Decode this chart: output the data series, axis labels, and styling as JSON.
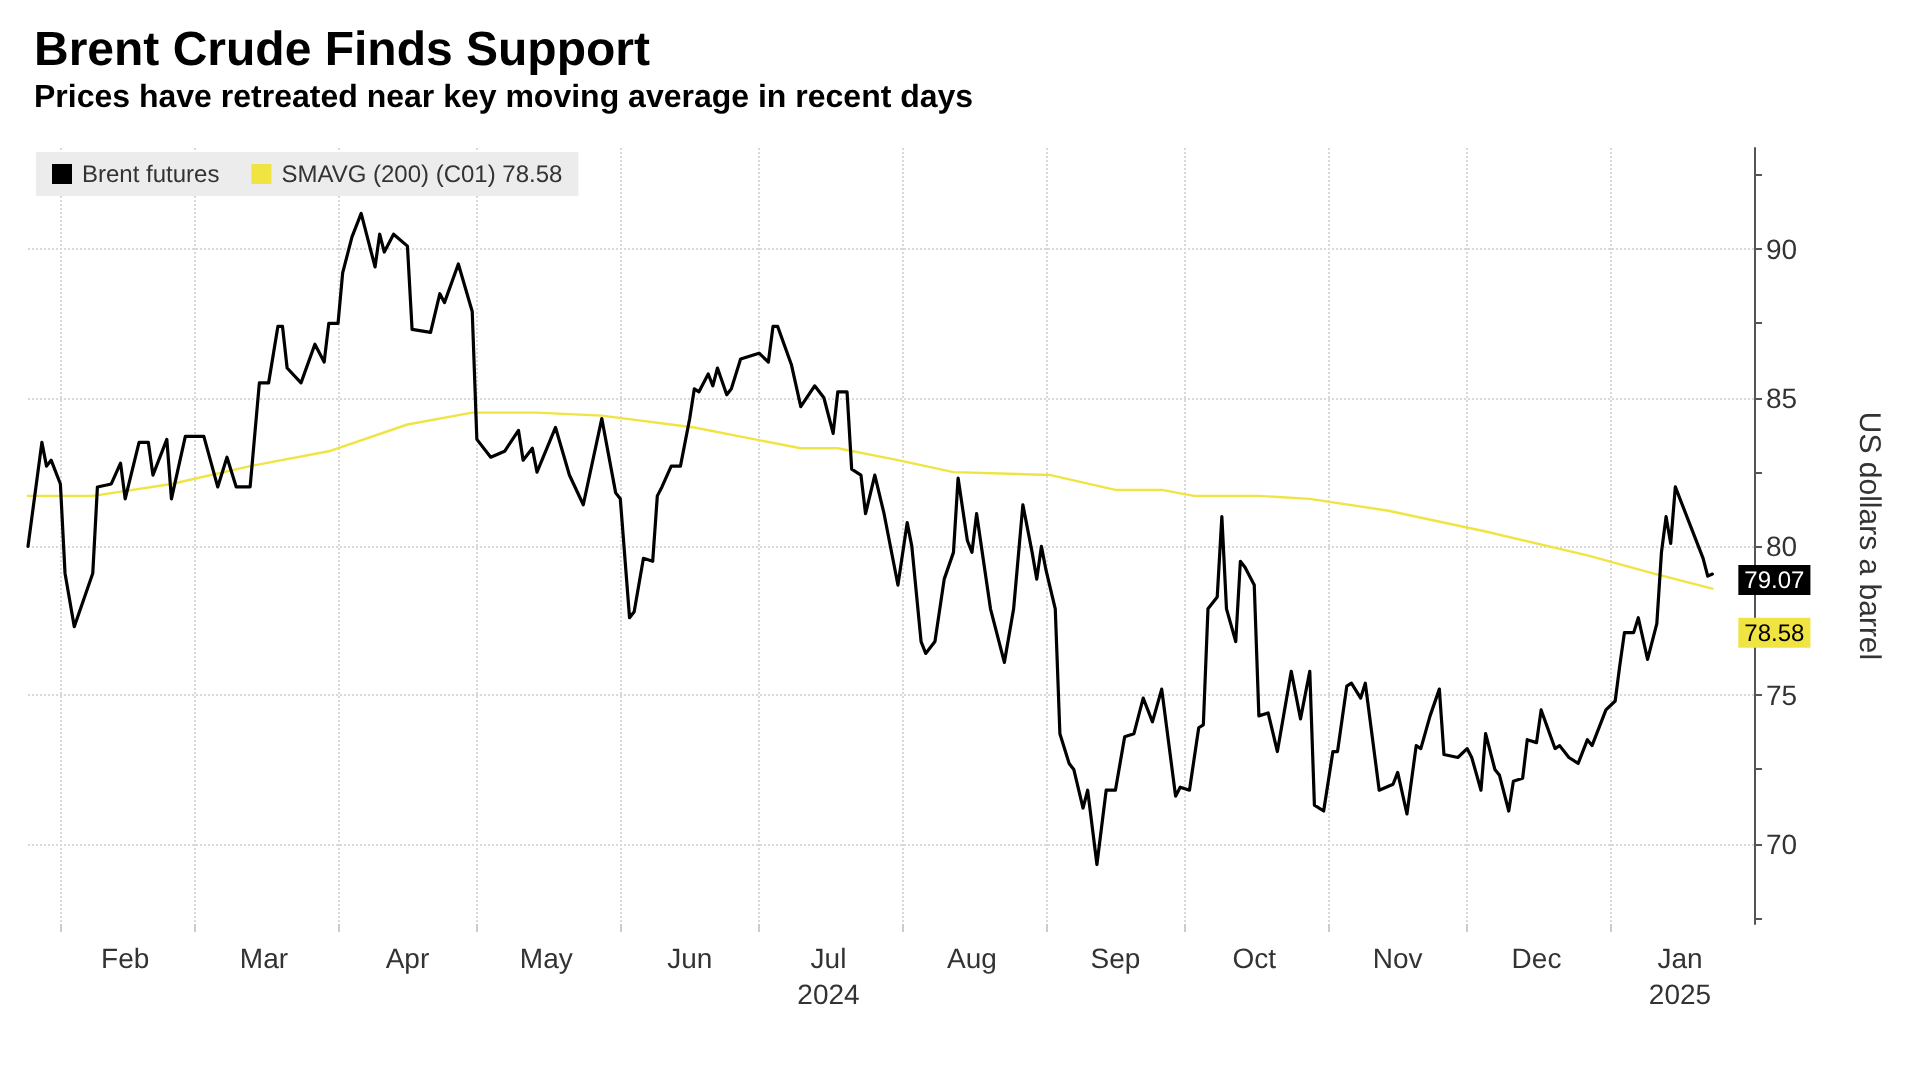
{
  "chart_data": {
    "type": "line",
    "title": "Brent Crude Finds Support",
    "subtitle": "Prices have retreated near key moving average in recent days",
    "ylabel": "US dollars a barrel",
    "xlim": [
      "2024-01-25",
      "2025-02-01"
    ],
    "xticks": [
      {
        "value": "2024-02-01",
        "label": null
      },
      {
        "value": "2024-02-15",
        "label": "Feb"
      },
      {
        "value": "2024-03-01",
        "label": null
      },
      {
        "value": "2024-03-16",
        "label": "Mar"
      },
      {
        "value": "2024-04-01",
        "label": null
      },
      {
        "value": "2024-04-16",
        "label": "Apr"
      },
      {
        "value": "2024-05-01",
        "label": null
      },
      {
        "value": "2024-05-16",
        "label": "May"
      },
      {
        "value": "2024-06-01",
        "label": null
      },
      {
        "value": "2024-06-16",
        "label": "Jun"
      },
      {
        "value": "2024-07-01",
        "label": null
      },
      {
        "value": "2024-07-16",
        "label": "Jul\n2024"
      },
      {
        "value": "2024-08-01",
        "label": null
      },
      {
        "value": "2024-08-16",
        "label": "Aug"
      },
      {
        "value": "2024-09-01",
        "label": null
      },
      {
        "value": "2024-09-16",
        "label": "Sep"
      },
      {
        "value": "2024-10-01",
        "label": null
      },
      {
        "value": "2024-10-16",
        "label": "Oct"
      },
      {
        "value": "2024-11-01",
        "label": null
      },
      {
        "value": "2024-11-16",
        "label": "Nov"
      },
      {
        "value": "2024-12-01",
        "label": null
      },
      {
        "value": "2024-12-16",
        "label": "Dec"
      },
      {
        "value": "2025-01-01",
        "label": null
      },
      {
        "value": "2025-01-16",
        "label": "Jan\n2025"
      }
    ],
    "ylim": [
      67.3,
      93.4
    ],
    "yticks": [
      {
        "value": 67.5,
        "label": null
      },
      70,
      {
        "value": 72.5,
        "label": null
      },
      75,
      {
        "value": 77.5,
        "label": null
      },
      80,
      {
        "value": 82.5,
        "label": null
      },
      85,
      {
        "value": 87.5,
        "label": null
      },
      90,
      {
        "value": 92.5,
        "label": null
      }
    ],
    "grid": true,
    "legend": "top left",
    "marker": "none",
    "line_style": "solid",
    "series": [
      {
        "name": "Brent futures",
        "color": "#000000",
        "x": [
          "2024-01-25",
          "2024-01-28",
          "2024-01-29",
          "2024-01-30",
          "2024-02-01",
          "2024-02-02",
          "2024-02-04",
          "2024-02-08",
          "2024-02-09",
          "2024-02-12",
          "2024-02-14",
          "2024-02-15",
          "2024-02-18",
          "2024-02-20",
          "2024-02-21",
          "2024-02-24",
          "2024-02-25",
          "2024-02-28",
          "2024-03-03",
          "2024-03-06",
          "2024-03-08",
          "2024-03-10",
          "2024-03-13",
          "2024-03-15",
          "2024-03-17",
          "2024-03-19",
          "2024-03-20",
          "2024-03-21",
          "2024-03-24",
          "2024-03-27",
          "2024-03-29",
          "2024-03-30",
          "2024-04-01",
          "2024-04-02",
          "2024-04-04",
          "2024-04-06",
          "2024-04-09",
          "2024-04-10",
          "2024-04-11",
          "2024-04-13",
          "2024-04-16",
          "2024-04-17",
          "2024-04-21",
          "2024-04-23",
          "2024-04-24",
          "2024-04-27",
          "2024-04-30",
          "2024-05-01",
          "2024-05-04",
          "2024-05-07",
          "2024-05-10",
          "2024-05-11",
          "2024-05-13",
          "2024-05-14",
          "2024-05-18",
          "2024-05-21",
          "2024-05-24",
          "2024-05-28",
          "2024-05-31",
          "2024-06-01",
          "2024-06-03",
          "2024-06-04",
          "2024-06-06",
          "2024-06-08",
          "2024-06-09",
          "2024-06-10",
          "2024-06-12",
          "2024-06-14",
          "2024-06-16",
          "2024-06-17",
          "2024-06-18",
          "2024-06-20",
          "2024-06-21",
          "2024-06-22",
          "2024-06-24",
          "2024-06-25",
          "2024-06-27",
          "2024-07-01",
          "2024-07-03",
          "2024-07-04",
          "2024-07-05",
          "2024-07-08",
          "2024-07-10",
          "2024-07-13",
          "2024-07-15",
          "2024-07-17",
          "2024-07-18",
          "2024-07-20",
          "2024-07-21",
          "2024-07-23",
          "2024-07-24",
          "2024-07-26",
          "2024-07-28",
          "2024-07-31",
          "2024-08-02",
          "2024-08-03",
          "2024-08-05",
          "2024-08-06",
          "2024-08-08",
          "2024-08-10",
          "2024-08-12",
          "2024-08-13",
          "2024-08-15",
          "2024-08-16",
          "2024-08-17",
          "2024-08-20",
          "2024-08-23",
          "2024-08-25",
          "2024-08-27",
          "2024-08-29",
          "2024-08-30",
          "2024-08-31",
          "2024-09-01",
          "2024-09-03",
          "2024-09-04",
          "2024-09-06",
          "2024-09-07",
          "2024-09-09",
          "2024-09-10",
          "2024-09-12",
          "2024-09-14",
          "2024-09-16",
          "2024-09-18",
          "2024-09-20",
          "2024-09-22",
          "2024-09-24",
          "2024-09-26",
          "2024-09-29",
          "2024-09-30",
          "2024-10-02",
          "2024-10-04",
          "2024-10-05",
          "2024-10-06",
          "2024-10-08",
          "2024-10-09",
          "2024-10-10",
          "2024-10-12",
          "2024-10-13",
          "2024-10-14",
          "2024-10-16",
          "2024-10-17",
          "2024-10-19",
          "2024-10-21",
          "2024-10-24",
          "2024-10-26",
          "2024-10-28",
          "2024-10-29",
          "2024-10-31",
          "2024-11-02",
          "2024-11-03",
          "2024-11-05",
          "2024-11-06",
          "2024-11-08",
          "2024-11-09",
          "2024-11-12",
          "2024-11-15",
          "2024-11-16",
          "2024-11-18",
          "2024-11-20",
          "2024-11-21",
          "2024-11-23",
          "2024-11-25",
          "2024-11-26",
          "2024-11-29",
          "2024-12-01",
          "2024-12-02",
          "2024-12-04",
          "2024-12-05",
          "2024-12-07",
          "2024-12-08",
          "2024-12-10",
          "2024-12-11",
          "2024-12-13",
          "2024-12-14",
          "2024-12-16",
          "2024-12-17",
          "2024-12-20",
          "2024-12-21",
          "2024-12-23",
          "2024-12-25",
          "2024-12-27",
          "2024-12-28",
          "2024-12-31",
          "2025-01-02",
          "2025-01-03",
          "2025-01-04",
          "2025-01-06",
          "2025-01-07",
          "2025-01-09",
          "2025-01-11",
          "2025-01-12",
          "2025-01-13",
          "2025-01-14",
          "2025-01-15",
          "2025-01-18",
          "2025-01-21",
          "2025-01-22",
          "2025-01-23"
        ],
        "values": [
          80.0,
          83.5,
          82.7,
          82.9,
          82.1,
          79.1,
          77.3,
          79.1,
          82.0,
          82.1,
          82.8,
          81.6,
          83.5,
          83.5,
          82.4,
          83.6,
          81.6,
          83.7,
          83.7,
          82.0,
          83.0,
          82.0,
          82.0,
          85.5,
          85.5,
          87.4,
          87.4,
          86.0,
          85.5,
          86.8,
          86.2,
          87.5,
          87.5,
          89.2,
          90.4,
          91.2,
          89.4,
          90.5,
          89.9,
          90.5,
          90.1,
          87.3,
          87.2,
          88.5,
          88.2,
          89.5,
          87.9,
          83.6,
          83.0,
          83.2,
          83.9,
          82.9,
          83.3,
          82.5,
          84.0,
          82.4,
          81.4,
          84.3,
          81.8,
          81.6,
          77.6,
          77.8,
          79.6,
          79.5,
          81.7,
          82.0,
          82.7,
          82.7,
          84.3,
          85.3,
          85.2,
          85.8,
          85.4,
          86.0,
          85.1,
          85.3,
          86.3,
          86.5,
          86.2,
          87.4,
          87.4,
          86.1,
          84.7,
          85.4,
          85.0,
          83.8,
          85.2,
          85.2,
          82.6,
          82.4,
          81.1,
          82.4,
          81.1,
          78.7,
          80.8,
          80.0,
          76.8,
          76.4,
          76.8,
          78.9,
          79.8,
          82.3,
          80.2,
          79.8,
          81.1,
          77.9,
          76.1,
          77.9,
          81.4,
          79.8,
          78.9,
          80.0,
          79.2,
          77.9,
          73.7,
          72.7,
          72.5,
          71.2,
          71.8,
          69.3,
          71.8,
          71.8,
          73.6,
          73.7,
          74.9,
          74.1,
          75.2,
          71.6,
          71.9,
          71.8,
          73.9,
          74.0,
          77.9,
          78.3,
          81.0,
          77.9,
          76.8,
          79.5,
          79.3,
          78.7,
          74.3,
          74.4,
          73.1,
          75.8,
          74.2,
          75.8,
          71.3,
          71.1,
          73.1,
          73.1,
          75.3,
          75.4,
          74.9,
          75.4,
          71.8,
          72.0,
          72.4,
          71.0,
          73.3,
          73.2,
          74.3,
          75.2,
          73.0,
          72.9,
          73.2,
          72.9,
          71.8,
          73.7,
          72.5,
          72.3,
          71.1,
          72.1,
          72.2,
          73.5,
          73.4,
          74.5,
          73.2,
          73.3,
          72.9,
          72.7,
          73.5,
          73.3,
          74.5,
          74.8,
          76.0,
          77.1,
          77.1,
          77.6,
          76.2,
          77.4,
          79.8,
          81.0,
          80.1,
          82.0,
          80.8,
          79.6,
          79.0,
          79.07
        ]
      },
      {
        "name": "SMAVG (200) (C01) 78.58",
        "color": "#f0e442",
        "x": [
          "2024-01-25",
          "2024-02-08",
          "2024-02-25",
          "2024-03-13",
          "2024-03-30",
          "2024-04-16",
          "2024-04-30",
          "2024-05-14",
          "2024-05-28",
          "2024-06-17",
          "2024-07-10",
          "2024-07-18",
          "2024-07-31",
          "2024-08-12",
          "2024-09-02",
          "2024-09-16",
          "2024-09-26",
          "2024-10-03",
          "2024-10-17",
          "2024-10-28",
          "2024-11-14",
          "2024-12-05",
          "2024-12-27",
          "2025-01-10",
          "2025-01-23"
        ],
        "values": [
          81.7,
          81.7,
          82.1,
          82.7,
          83.2,
          84.1,
          84.5,
          84.5,
          84.4,
          84.0,
          83.3,
          83.3,
          82.9,
          82.5,
          82.4,
          81.9,
          81.9,
          81.7,
          81.7,
          81.6,
          81.2,
          80.5,
          79.7,
          79.1,
          78.58
        ]
      }
    ],
    "annotations": [
      {
        "text": "79.07",
        "x": "2025-01-23",
        "y": 79.07
      },
      {
        "text": "78.58",
        "x": "2025-01-23",
        "y": 78.58
      }
    ]
  }
}
